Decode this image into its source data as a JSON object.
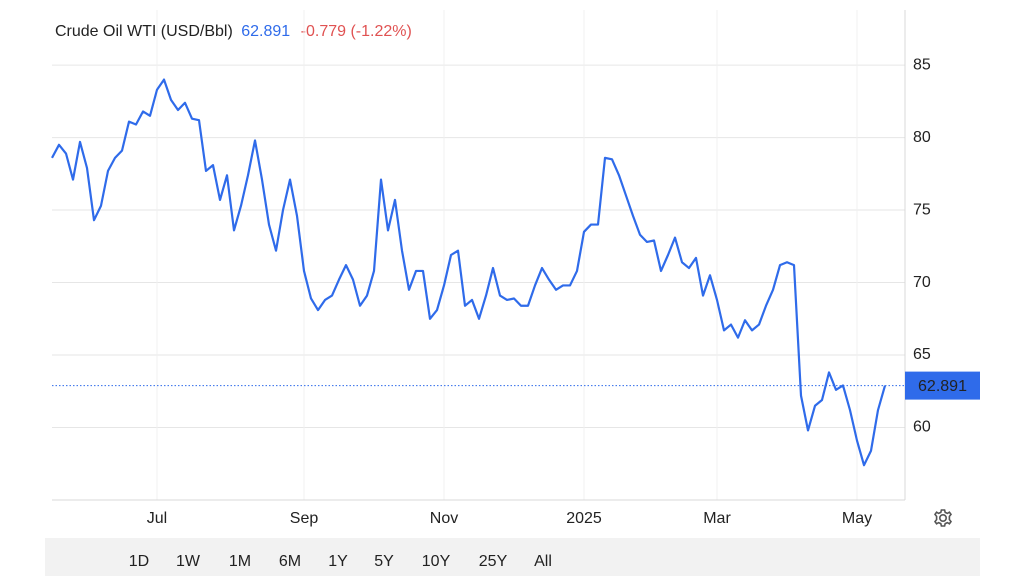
{
  "chart_data": {
    "type": "line",
    "title": "Crude Oil WTI (USD/Bbl)",
    "change": "-0.779 (-1.22%)",
    "categories": [
      null,
      null,
      null,
      null,
      null,
      null,
      null,
      null,
      null,
      null,
      null,
      null,
      null,
      null,
      null,
      "Jul",
      null,
      null,
      null,
      null,
      null,
      null,
      null,
      null,
      null,
      null,
      null,
      null,
      null,
      null,
      null,
      null,
      null,
      null,
      null,
      null,
      "Sep",
      null,
      null,
      null,
      null,
      null,
      null,
      null,
      null,
      null,
      null,
      null,
      null,
      null,
      null,
      null,
      null,
      null,
      null,
      null,
      "Nov",
      null,
      null,
      null,
      null,
      null,
      null,
      null,
      null,
      null,
      null,
      null,
      null,
      null,
      null,
      null,
      null,
      null,
      null,
      null,
      "2025",
      null,
      null,
      null,
      null,
      null,
      null,
      null,
      null,
      null,
      null,
      null,
      null,
      null,
      null,
      null,
      null,
      null,
      null,
      "Mar",
      null,
      null,
      null,
      null,
      null,
      null,
      null,
      null,
      null,
      null,
      null,
      null,
      null,
      null,
      null,
      null,
      null,
      null,
      null,
      "May",
      null,
      null,
      null,
      null
    ],
    "series": [
      {
        "name": "Crude Oil WTI",
        "color": "#2f6bea",
        "values": [
          78.6,
          79.5,
          78.9,
          77.1,
          79.7,
          77.9,
          74.3,
          75.3,
          77.7,
          78.6,
          79.1,
          81.1,
          80.9,
          81.8,
          81.5,
          83.3,
          84.0,
          82.6,
          81.9,
          82.4,
          81.3,
          81.2,
          77.7,
          78.1,
          75.7,
          77.4,
          73.6,
          75.3,
          77.4,
          79.8,
          77.1,
          74.0,
          72.2,
          75.0,
          77.1,
          74.6,
          70.8,
          68.9,
          68.1,
          68.8,
          69.1,
          70.2,
          71.2,
          70.2,
          68.4,
          69.1,
          70.8,
          77.1,
          73.6,
          75.7,
          72.2,
          69.5,
          70.8,
          70.8,
          67.5,
          68.1,
          69.8,
          71.9,
          72.2,
          68.4,
          68.8,
          67.5,
          69.1,
          71.0,
          69.1,
          68.8,
          68.9,
          68.4,
          68.4,
          69.8,
          71.0,
          70.2,
          69.5,
          69.8,
          69.8,
          70.8,
          73.5,
          74.0,
          74.0,
          78.6,
          78.5,
          77.4,
          76.0,
          74.6,
          73.3,
          72.8,
          72.9,
          70.8,
          71.9,
          73.1,
          71.4,
          71.0,
          71.7,
          69.1,
          70.5,
          68.8,
          66.7,
          67.1,
          66.2,
          67.4,
          66.7,
          67.1,
          68.4,
          69.5,
          71.2,
          71.4,
          71.2,
          62.2,
          59.8,
          61.5,
          61.9,
          63.8,
          62.6,
          62.9,
          61.2,
          59.1,
          57.4,
          58.4,
          61.2,
          62.891
        ]
      }
    ],
    "ylim": [
      55,
      88.8
    ],
    "yticks": [
      60,
      65,
      70,
      75,
      80,
      85
    ],
    "grid": true,
    "ranges": [
      "1D",
      "1W",
      "1M",
      "6M",
      "1Y",
      "5Y",
      "10Y",
      "25Y",
      "All"
    ],
    "selected_range": 4
  }
}
